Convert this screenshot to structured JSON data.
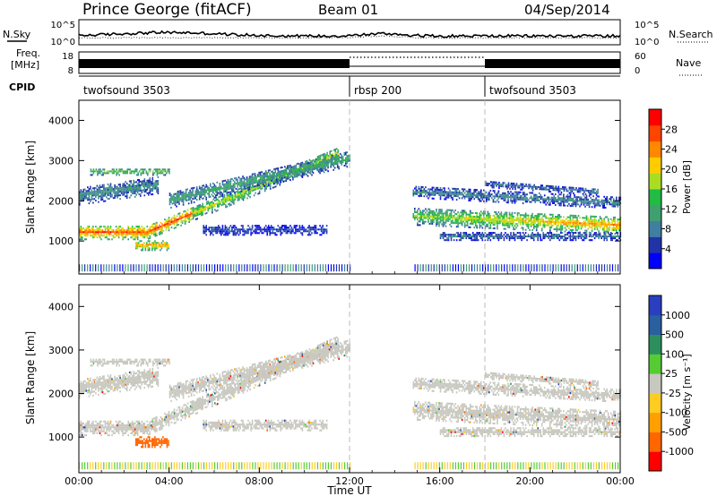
{
  "header": {
    "title": "Prince George (fitACF)",
    "beam": "Beam 01",
    "date": "04/Sep/2014"
  },
  "noise_panel": {
    "left_label": "N.Sky",
    "right_label": "N.Search",
    "left_ticks": [
      "10^5",
      "10^0"
    ],
    "right_ticks": [
      "10^5",
      "10^0"
    ]
  },
  "freq_panel": {
    "left_label_line1": "Freq.",
    "left_label_line2": "[MHz]",
    "left_ticks": [
      "18",
      "8"
    ],
    "right_label": "Nave",
    "right_ticks": [
      "60",
      "0"
    ]
  },
  "cpid_panel": {
    "label": "CPID",
    "segments": [
      {
        "name": "twofsound 3503",
        "start_ut": 0
      },
      {
        "name": "rbsp 200",
        "start_ut": 12
      },
      {
        "name": "twofsound 3503",
        "start_ut": 18
      }
    ]
  },
  "colors": {
    "power_scale": [
      "#0000ff",
      "#2233aa",
      "#3f7fa0",
      "#3f9f6f",
      "#22bb44",
      "#aadd22",
      "#ffcc00",
      "#ff8800",
      "#ff4400",
      "#ff0000"
    ],
    "velocity_scale": [
      "#2a3fbf",
      "#2a5fa0",
      "#2e8f5e",
      "#55cc33",
      "#c8c8c0",
      "#ffcc22",
      "#ffa000",
      "#ff6600",
      "#ff0000"
    ]
  },
  "chart_data": [
    {
      "type": "heatmap",
      "name": "power",
      "xlabel": "",
      "ylabel": "Slant Range [km]",
      "xlim": [
        0,
        24
      ],
      "ylim": [
        180,
        4500
      ],
      "yticks": [
        "1000",
        "2000",
        "3000",
        "4000"
      ],
      "colorbar_label": "Power [dB]",
      "colorbar_ticks": [
        "4",
        "8",
        "12",
        "16",
        "20",
        "24",
        "28"
      ],
      "colorbar_range": [
        0,
        32
      ]
    },
    {
      "type": "heatmap",
      "name": "velocity",
      "xlabel": "Time UT",
      "ylabel": "Slant Range [km]",
      "xlim": [
        0,
        24
      ],
      "ylim": [
        180,
        4500
      ],
      "xticks": [
        "00:00",
        "04:00",
        "08:00",
        "12:00",
        "16:00",
        "20:00",
        "00:00"
      ],
      "yticks": [
        "1000",
        "2000",
        "3000",
        "4000"
      ],
      "colorbar_label": "Velocity [m s⁻¹]",
      "colorbar_ticks": [
        "1000",
        "500",
        "100",
        "25",
        "-25",
        "-100",
        "-500",
        "-1000"
      ]
    }
  ]
}
